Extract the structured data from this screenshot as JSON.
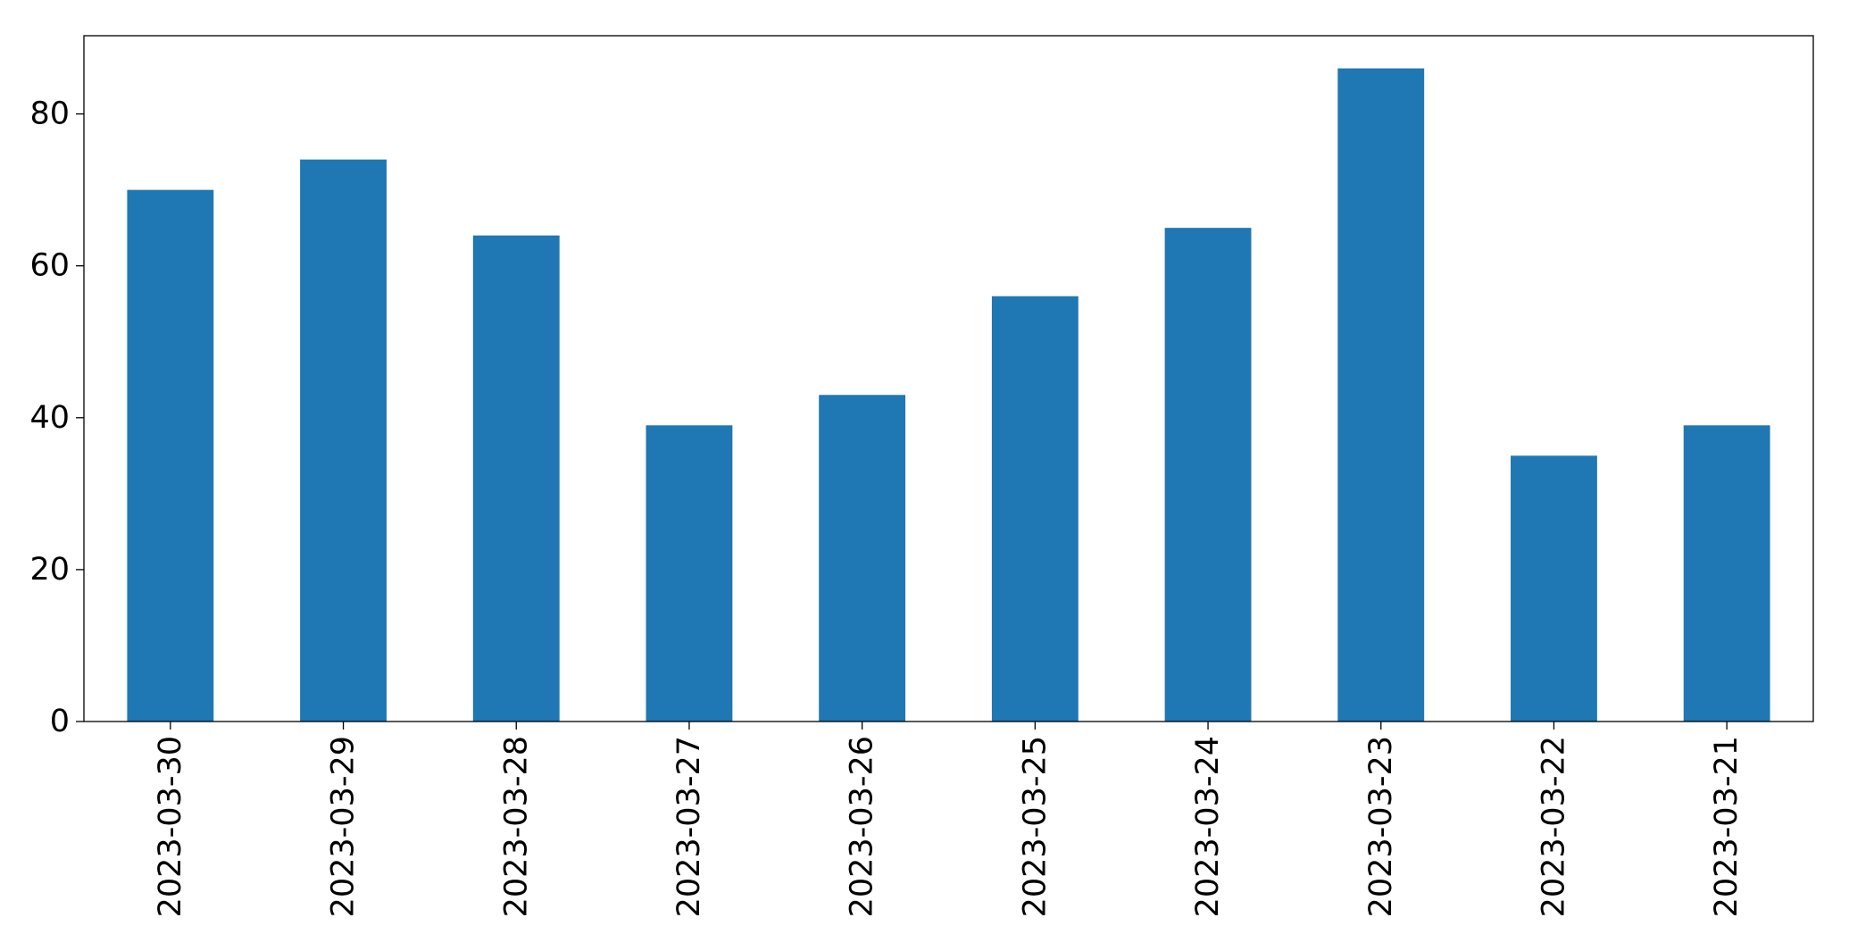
{
  "chart_data": {
    "type": "bar",
    "categories": [
      "2023-03-30",
      "2023-03-29",
      "2023-03-28",
      "2023-03-27",
      "2023-03-26",
      "2023-03-25",
      "2023-03-24",
      "2023-03-23",
      "2023-03-22",
      "2023-03-21"
    ],
    "values": [
      70,
      74,
      64,
      39,
      43,
      56,
      65,
      86,
      35,
      39
    ],
    "color": "#1f77b4",
    "ylim": [
      0,
      90.3
    ],
    "yticks": [
      0,
      20,
      40,
      60,
      80
    ],
    "grid": false
  }
}
